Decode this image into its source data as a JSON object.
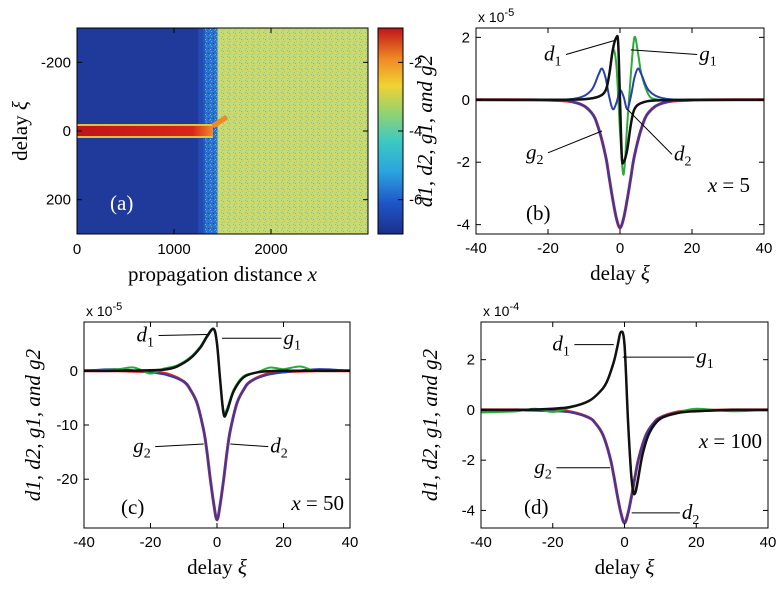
{
  "chart_data": [
    {
      "id": "a",
      "type": "heatmap",
      "panel_label": "(a)",
      "xlabel": "propagation distance",
      "xlabel_var": "x",
      "ylabel": "delay",
      "ylabel_var": "ξ",
      "xlim": [
        0,
        3000
      ],
      "ylim": [
        -300,
        300
      ],
      "y_inverted": true,
      "xticks": [
        0,
        1000,
        2000
      ],
      "yticks": [
        -200,
        0,
        200
      ],
      "colorbar": {
        "ticks": [
          -2,
          -4,
          -6
        ],
        "range": [
          -7,
          -1
        ]
      },
      "regions": [
        {
          "x_from": 0,
          "x_to": 1300,
          "value": -6.7,
          "color": "#1f3a9a"
        },
        {
          "x_from": 1300,
          "x_to": 1450,
          "value": -5,
          "color": "#2a9fd6"
        },
        {
          "x_from": 1450,
          "x_to": 3000,
          "value": -3.8,
          "color": "#c8d96e"
        }
      ],
      "pulse": {
        "x_from": 0,
        "x_to": 1400,
        "delay": 0,
        "value": -1.2,
        "color": "#c0141a"
      }
    },
    {
      "id": "b",
      "type": "line",
      "panel_label": "(b)",
      "x_annotation_var": "x",
      "x_annotation_value": "= 5",
      "xlabel": "delay",
      "xlabel_var": "ξ",
      "ylabel": "d1, d2, g1, and g2",
      "multiplier": {
        "base": "x 10",
        "exp": "-5"
      },
      "xlim": [
        -40,
        40
      ],
      "ylim": [
        -4.3,
        2.3
      ],
      "xticks": [
        -40,
        -20,
        0,
        20,
        40
      ],
      "yticks": [
        2,
        0,
        -2,
        -4
      ],
      "series": [
        {
          "name": "g2",
          "color": "#e01f26",
          "width": 3,
          "x": [
            -40,
            -20,
            -12,
            -8,
            -6,
            -4,
            -3,
            -2,
            -1,
            0,
            1,
            2,
            3,
            4,
            6,
            8,
            12,
            20,
            40
          ],
          "y": [
            0,
            -0.01,
            -0.1,
            -0.4,
            -0.9,
            -1.8,
            -2.5,
            -3.2,
            -3.8,
            -4.1,
            -3.8,
            -3.2,
            -2.5,
            -1.8,
            -0.9,
            -0.4,
            -0.1,
            -0.01,
            0
          ]
        },
        {
          "name": "d2",
          "color": "#2b3fa8",
          "width": 2,
          "x": [
            -40,
            -20,
            -12,
            -8,
            -6,
            -4,
            -3,
            -2,
            -1,
            0,
            1,
            2,
            3,
            4,
            6,
            8,
            12,
            20,
            40
          ],
          "y": [
            0,
            -0.01,
            -0.1,
            -0.4,
            -0.9,
            -1.8,
            -2.5,
            -3.2,
            -3.8,
            -4.1,
            -3.8,
            -3.2,
            -2.5,
            -1.8,
            -0.9,
            -0.4,
            -0.1,
            -0.01,
            0
          ]
        },
        {
          "name": "g1",
          "color": "#2aab3a",
          "width": 2,
          "x": [
            -40,
            -20,
            -10,
            -6,
            -4,
            -3,
            -2,
            -1,
            0,
            1,
            2,
            3,
            4,
            5,
            6,
            8,
            10,
            14,
            20,
            40
          ],
          "y": [
            0,
            0,
            0.02,
            0.1,
            0.3,
            0.8,
            1.6,
            1.1,
            -1.0,
            -2.4,
            -0.8,
            0.8,
            2.0,
            1.5,
            0.8,
            0.15,
            0.02,
            -0.02,
            0,
            0
          ]
        },
        {
          "name": "d1",
          "color": "#2b3fa8",
          "width": 2,
          "x": [
            -40,
            -20,
            -12,
            -8,
            -6,
            -5,
            -4,
            -3,
            -2,
            -1,
            0,
            1,
            2,
            3,
            4,
            5,
            6,
            8,
            12,
            20,
            40
          ],
          "y": [
            0,
            0,
            0.05,
            0.3,
            0.8,
            1.0,
            0.7,
            0.1,
            -0.3,
            -0.1,
            0.3,
            0.1,
            -0.3,
            0.1,
            0.7,
            1.0,
            0.8,
            0.3,
            0.05,
            0,
            0
          ]
        },
        {
          "name": "d1",
          "color": "#111111",
          "width": 2.5,
          "x": [
            -40,
            -20,
            -10,
            -6,
            -4,
            -3,
            -2,
            -1,
            -0.5,
            0,
            0.5,
            1,
            2,
            3,
            4,
            6,
            10,
            20,
            40
          ],
          "y": [
            0,
            0,
            0.02,
            0.1,
            0.3,
            0.8,
            1.6,
            2.0,
            1.8,
            0,
            -1.8,
            -2.0,
            -1.6,
            -0.8,
            -0.3,
            -0.1,
            -0.02,
            0,
            0
          ]
        }
      ],
      "labels": [
        {
          "text": "d",
          "sub": "1",
          "x": -20,
          "y": 1.45,
          "line_to": [
            -1.5,
            1.9
          ]
        },
        {
          "text": "g",
          "sub": "1",
          "x": 22,
          "y": 1.45,
          "line_to": [
            3,
            1.6
          ]
        },
        {
          "text": "g",
          "sub": "2",
          "x": -25,
          "y": -1.7,
          "line_to": [
            -5,
            -1.0
          ]
        },
        {
          "text": "d",
          "sub": "2",
          "x": 15,
          "y": -1.75,
          "line_to": [
            2,
            -0.3
          ]
        }
      ]
    },
    {
      "id": "c",
      "type": "line",
      "panel_label": "(c)",
      "x_annotation_var": "x",
      "x_annotation_value": "= 50",
      "xlabel": "delay",
      "xlabel_var": "ξ",
      "ylabel": "d1, d2, g1, and g2",
      "multiplier": {
        "base": "x 10",
        "exp": "-5"
      },
      "xlim": [
        -40,
        40
      ],
      "ylim": [
        -29,
        9
      ],
      "xticks": [
        -40,
        -20,
        0,
        20,
        40
      ],
      "yticks": [
        0,
        -10,
        -20
      ],
      "series": [
        {
          "name": "g2",
          "color": "#e01f26",
          "width": 3,
          "x": [
            -40,
            -30,
            -20,
            -15,
            -10,
            -8,
            -6,
            -4,
            -3,
            -2,
            -1,
            0,
            1,
            2,
            3,
            4,
            6,
            8,
            10,
            15,
            20,
            30,
            40
          ],
          "y": [
            0,
            0,
            -0.2,
            -0.6,
            -2,
            -3.5,
            -6,
            -11,
            -15,
            -20,
            -24.5,
            -27.5,
            -24.5,
            -20,
            -15,
            -11,
            -6,
            -3.5,
            -2,
            -0.6,
            -0.2,
            0,
            0
          ]
        },
        {
          "name": "d2",
          "color": "#2b3fa8",
          "width": 2,
          "x": [
            -40,
            -30,
            -20,
            -15,
            -10,
            -8,
            -6,
            -4,
            -3,
            -2,
            -1,
            0,
            1,
            2,
            3,
            4,
            6,
            8,
            10,
            15,
            20,
            30,
            40
          ],
          "y": [
            0,
            0.3,
            -0.3,
            -0.8,
            -2,
            -3.5,
            -6,
            -11,
            -15,
            -20,
            -24.5,
            -27.5,
            -24.5,
            -20,
            -15,
            -11,
            -6,
            -3.5,
            -2,
            -0.8,
            -0.3,
            0.3,
            0
          ]
        },
        {
          "name": "g1",
          "color": "#2aab3a",
          "width": 2,
          "x": [
            -40,
            -30,
            -25,
            -20,
            -16,
            -12,
            -8,
            -5,
            -3,
            -1,
            0,
            1,
            2,
            3,
            5,
            8,
            12,
            16,
            20,
            25,
            30,
            40
          ],
          "y": [
            0,
            0.3,
            0.6,
            -0.5,
            0.4,
            1.0,
            2.5,
            4.5,
            6.5,
            7.8,
            5,
            -2,
            -7.5,
            -7,
            -3.5,
            -1,
            -0.3,
            0.6,
            0.3,
            0.8,
            0,
            0
          ]
        },
        {
          "name": "d1",
          "color": "#111111",
          "width": 2.5,
          "x": [
            -40,
            -30,
            -20,
            -15,
            -12,
            -8,
            -5,
            -3,
            -1,
            0,
            1,
            2,
            3,
            5,
            8,
            12,
            15,
            20,
            30,
            40
          ],
          "y": [
            0,
            0,
            0.1,
            0.3,
            0.8,
            2.3,
            4.3,
            6.3,
            7.7,
            5,
            -2,
            -8,
            -7.5,
            -3.8,
            -1.2,
            -0.3,
            -0.1,
            0,
            0,
            0
          ]
        }
      ],
      "labels": [
        {
          "text": "d",
          "sub": "1",
          "x": -23,
          "y": 6.5,
          "line_to": [
            -3,
            6.7
          ]
        },
        {
          "text": "g",
          "sub": "1",
          "x": 20,
          "y": 6.0,
          "line_to": [
            1.5,
            6.0
          ]
        },
        {
          "text": "g",
          "sub": "2",
          "x": -24,
          "y": -14,
          "line_to": [
            -4,
            -13.5
          ]
        },
        {
          "text": "d",
          "sub": "2",
          "x": 16,
          "y": -14,
          "line_to": [
            4,
            -13.5
          ]
        }
      ]
    },
    {
      "id": "d",
      "type": "line",
      "panel_label": "(d)",
      "x_annotation_var": "x",
      "x_annotation_value": "= 100",
      "xlabel": "delay",
      "xlabel_var": "ξ",
      "ylabel": "d1, d2, g1, and g2",
      "multiplier": {
        "base": "x 10",
        "exp": "-4"
      },
      "xlim": [
        -40,
        40
      ],
      "ylim": [
        -4.7,
        3.5
      ],
      "xticks": [
        -40,
        -20,
        0,
        20,
        40
      ],
      "yticks": [
        2,
        0,
        -2,
        -4
      ],
      "series": [
        {
          "name": "g2",
          "color": "#e01f26",
          "width": 3,
          "x": [
            -40,
            -30,
            -20,
            -15,
            -10,
            -8,
            -6,
            -4,
            -3,
            -2,
            -1,
            0,
            1,
            2,
            3,
            4,
            6,
            8,
            10,
            15,
            20,
            30,
            40
          ],
          "y": [
            0,
            0,
            -0.03,
            -0.08,
            -0.3,
            -0.55,
            -1.0,
            -1.9,
            -2.6,
            -3.4,
            -4.1,
            -4.5,
            -4.1,
            -3.4,
            -2.6,
            -1.9,
            -1.0,
            -0.55,
            -0.3,
            -0.08,
            -0.03,
            0,
            0
          ]
        },
        {
          "name": "d2",
          "color": "#2b3fa8",
          "width": 2,
          "x": [
            -40,
            -30,
            -20,
            -15,
            -10,
            -8,
            -6,
            -4,
            -3,
            -2,
            -1,
            0,
            1,
            2,
            3,
            4,
            6,
            8,
            10,
            15,
            20,
            30,
            40
          ],
          "y": [
            0,
            0,
            -0.05,
            -0.1,
            -0.3,
            -0.55,
            -1.0,
            -1.9,
            -2.6,
            -3.4,
            -4.1,
            -4.5,
            -4.1,
            -3.4,
            -2.6,
            -1.9,
            -1.0,
            -0.55,
            -0.3,
            -0.1,
            -0.05,
            0,
            0
          ]
        },
        {
          "name": "g1",
          "color": "#2aab3a",
          "width": 2,
          "x": [
            -40,
            -30,
            -25,
            -20,
            -15,
            -10,
            -7,
            -5,
            -3,
            -2,
            -1,
            0,
            1,
            2,
            3,
            5,
            7,
            10,
            15,
            20,
            30,
            40
          ],
          "y": [
            -0.1,
            -0.05,
            0.05,
            -0.08,
            0.1,
            0.35,
            0.7,
            1.1,
            1.9,
            2.5,
            3.1,
            2.6,
            -0.5,
            -2.8,
            -3.2,
            -1.8,
            -0.9,
            -0.35,
            -0.1,
            0.05,
            -0.05,
            0
          ]
        },
        {
          "name": "d1",
          "color": "#111111",
          "width": 2.5,
          "x": [
            -40,
            -30,
            -20,
            -15,
            -10,
            -7,
            -5,
            -3,
            -2,
            -1,
            0,
            1,
            2,
            3,
            5,
            7,
            10,
            15,
            20,
            30,
            40
          ],
          "y": [
            0,
            0,
            0.05,
            0.12,
            0.35,
            0.7,
            1.1,
            1.9,
            2.5,
            3.1,
            2.6,
            -0.5,
            -2.8,
            -3.3,
            -1.8,
            -0.9,
            -0.35,
            -0.12,
            -0.05,
            0,
            0
          ]
        }
      ],
      "labels": [
        {
          "text": "d",
          "sub": "1",
          "x": -19,
          "y": 2.6,
          "line_to": [
            -3,
            2.6
          ]
        },
        {
          "text": "g",
          "sub": "1",
          "x": 20,
          "y": 2.1,
          "line_to": [
            -0.5,
            2.1
          ]
        },
        {
          "text": "g",
          "sub": "2",
          "x": -24,
          "y": -2.3,
          "line_to": [
            -4,
            -2.3
          ]
        },
        {
          "text": "d",
          "sub": "2",
          "x": 16,
          "y": -4.1,
          "line_to": [
            2,
            -4.1
          ]
        }
      ]
    }
  ]
}
